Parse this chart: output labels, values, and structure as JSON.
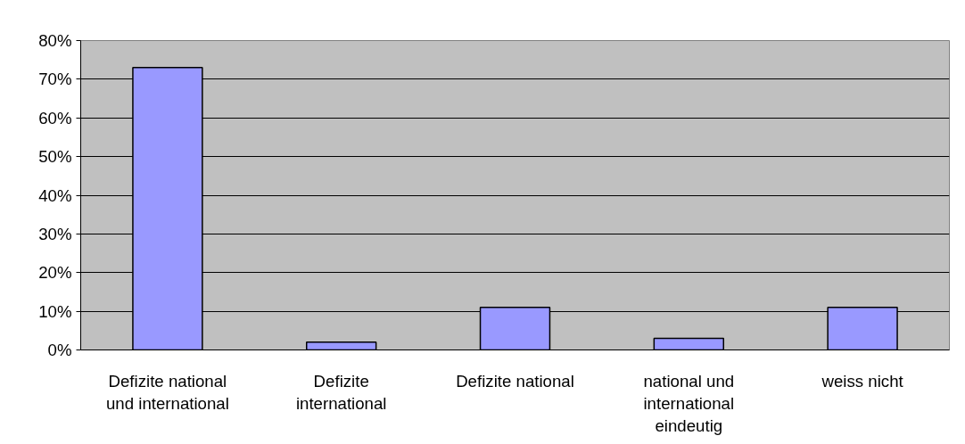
{
  "chart_data": {
    "type": "bar",
    "categories": [
      "Defizite national und international",
      "Defizite international",
      "Defizite national",
      "national und international eindeutig",
      "weiss nicht"
    ],
    "values": [
      73,
      2,
      11,
      3,
      11
    ],
    "color": "#9999ff",
    "ylim": [
      0,
      80
    ],
    "yticks": [
      {
        "value": 0,
        "label": "0%"
      },
      {
        "value": 10,
        "label": "10%"
      },
      {
        "value": 20,
        "label": "20%"
      },
      {
        "value": 30,
        "label": "30%"
      },
      {
        "value": 40,
        "label": "40%"
      },
      {
        "value": 50,
        "label": "50%"
      },
      {
        "value": 60,
        "label": "60%"
      },
      {
        "value": 70,
        "label": "70%"
      },
      {
        "value": 80,
        "label": "80%"
      }
    ],
    "grid": "y"
  }
}
